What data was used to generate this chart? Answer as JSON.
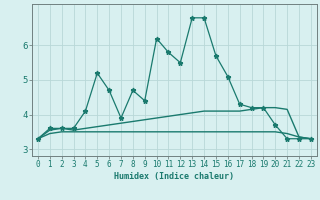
{
  "xlabel": "Humidex (Indice chaleur)",
  "x_values": [
    0,
    1,
    2,
    3,
    4,
    5,
    6,
    7,
    8,
    9,
    10,
    11,
    12,
    13,
    14,
    15,
    16,
    17,
    18,
    19,
    20,
    21,
    22,
    23
  ],
  "line1_y": [
    3.3,
    3.6,
    3.6,
    3.6,
    4.1,
    5.2,
    4.7,
    3.9,
    4.7,
    4.4,
    6.2,
    5.8,
    5.5,
    6.8,
    6.8,
    5.7,
    5.1,
    4.3,
    4.2,
    4.2,
    3.7,
    3.3,
    3.3,
    3.3
  ],
  "line2_y": [
    3.3,
    3.55,
    3.6,
    3.55,
    3.6,
    3.65,
    3.7,
    3.75,
    3.8,
    3.85,
    3.9,
    3.95,
    4.0,
    4.05,
    4.1,
    4.1,
    4.1,
    4.1,
    4.15,
    4.2,
    4.2,
    4.15,
    3.35,
    3.3
  ],
  "line3_y": [
    3.3,
    3.45,
    3.5,
    3.5,
    3.5,
    3.5,
    3.5,
    3.5,
    3.5,
    3.5,
    3.5,
    3.5,
    3.5,
    3.5,
    3.5,
    3.5,
    3.5,
    3.5,
    3.5,
    3.5,
    3.5,
    3.45,
    3.35,
    3.3
  ],
  "line_color": "#1a7a6e",
  "bg_color": "#d8f0f0",
  "grid_color": "#b8d8d8",
  "ylim": [
    2.8,
    7.2
  ],
  "xlim": [
    -0.5,
    23.5
  ],
  "yticks": [
    3,
    4,
    5,
    6
  ],
  "xticks": [
    0,
    1,
    2,
    3,
    4,
    5,
    6,
    7,
    8,
    9,
    10,
    11,
    12,
    13,
    14,
    15,
    16,
    17,
    18,
    19,
    20,
    21,
    22,
    23
  ],
  "xlabel_fontsize": 6.0,
  "ytick_fontsize": 6.5,
  "xtick_fontsize": 5.5
}
